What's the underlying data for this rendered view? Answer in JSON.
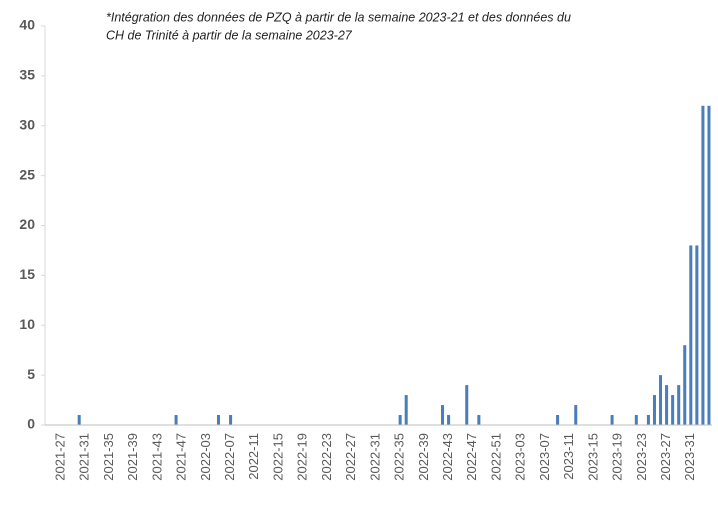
{
  "chart_data": {
    "type": "bar",
    "annotation": [
      "*Intégration des données de PZQ à partir de la semaine 2023-21 et des données du",
      "CH de Trinité à partir de la  semaine 2023-27"
    ],
    "categories": [
      "2021-27",
      null,
      null,
      null,
      "2021-31",
      null,
      null,
      null,
      "2021-35",
      null,
      null,
      null,
      "2021-39",
      null,
      null,
      null,
      "2021-43",
      null,
      null,
      null,
      "2021-47",
      null,
      null,
      null,
      "2022-03",
      null,
      null,
      null,
      "2022-07",
      null,
      null,
      null,
      "2022-11",
      null,
      null,
      null,
      "2022-15",
      null,
      null,
      null,
      "2022-19",
      null,
      null,
      null,
      "2022-23",
      null,
      null,
      null,
      "2022-27",
      null,
      null,
      null,
      "2022-31",
      null,
      null,
      null,
      "2022-35",
      null,
      null,
      null,
      "2022-39",
      null,
      null,
      null,
      "2022-43",
      null,
      null,
      null,
      "2022-47",
      null,
      null,
      null,
      "2022-51",
      null,
      null,
      null,
      "2023-03",
      null,
      null,
      null,
      "2023-07",
      null,
      null,
      null,
      "2023-11",
      null,
      null,
      null,
      "2023-15",
      null,
      null,
      null,
      "2023-19",
      null,
      null,
      null,
      "2023-23",
      null,
      null,
      null,
      "2023-27",
      null,
      null,
      null,
      "2023-31",
      null,
      null,
      null
    ],
    "values": [
      0,
      0,
      0,
      1,
      0,
      0,
      0,
      0,
      0,
      0,
      0,
      0,
      0,
      0,
      0,
      0,
      0,
      0,
      0,
      1,
      0,
      0,
      0,
      0,
      0,
      0,
      1,
      0,
      1,
      0,
      0,
      0,
      0,
      0,
      0,
      0,
      0,
      0,
      0,
      0,
      0,
      0,
      0,
      0,
      0,
      0,
      0,
      0,
      0,
      0,
      0,
      0,
      0,
      0,
      0,
      0,
      1,
      3,
      0,
      0,
      0,
      0,
      0,
      2,
      1,
      0,
      0,
      4,
      0,
      1,
      0,
      0,
      0,
      0,
      0,
      0,
      0,
      0,
      0,
      0,
      0,
      0,
      1,
      0,
      0,
      2,
      0,
      0,
      0,
      0,
      0,
      1,
      0,
      0,
      0,
      1,
      0,
      1,
      3,
      5,
      4,
      3,
      4,
      8,
      18,
      18,
      32,
      32
    ],
    "color": "#4a7ebb",
    "ylim": [
      0,
      40
    ],
    "yticks": [
      0,
      5,
      10,
      15,
      20,
      25,
      30,
      35,
      40
    ],
    "grid": false
  }
}
